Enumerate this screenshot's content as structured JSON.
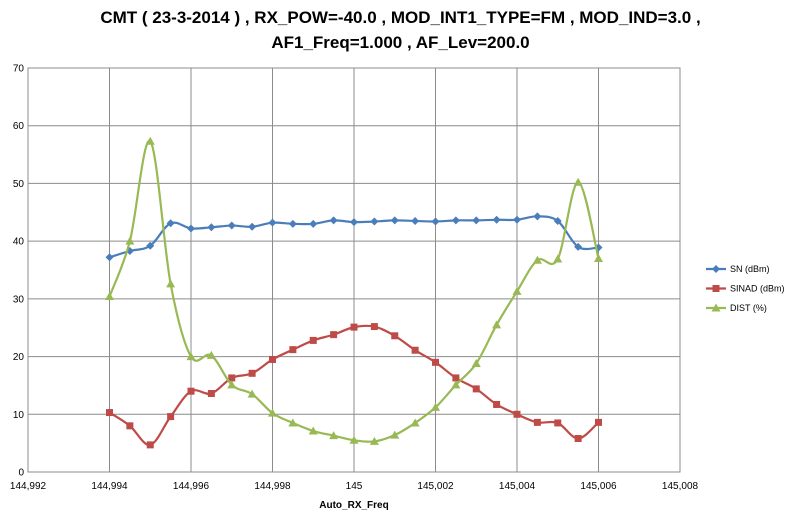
{
  "chart_data": {
    "type": "line",
    "title_line1": "CMT ( 23-3-2014 ) , RX_POW=-40.0 , MOD_INT1_TYPE=FM , MOD_IND=3.0 ,",
    "title_line2": "AF1_Freq=1.000 , AF_Lev=200.0",
    "xlabel": "Auto_RX_Freq",
    "ylabel": "",
    "xlim": [
      144.992,
      145.008
    ],
    "ylim": [
      0,
      70
    ],
    "x_ticks": [
      "144,992",
      "144,994",
      "144,996",
      "144,998",
      "145",
      "145,002",
      "145,004",
      "145,006",
      "145,008"
    ],
    "y_ticks": [
      "0",
      "10",
      "20",
      "30",
      "40",
      "50",
      "60",
      "70"
    ],
    "grid": "vertical and horizontal major gridlines",
    "legend_position": "right",
    "x": [
      144.994,
      144.9945,
      144.995,
      144.9955,
      144.996,
      144.9965,
      144.997,
      144.9975,
      144.998,
      144.9985,
      144.999,
      144.9995,
      145.0,
      145.0005,
      145.001,
      145.0015,
      145.002,
      145.0025,
      145.003,
      145.0035,
      145.004,
      145.0045,
      145.005,
      145.0055,
      145.006
    ],
    "series": [
      {
        "name": "SN (dBm)",
        "color": "#4a7ebb",
        "marker": "diamond",
        "values": [
          37.2,
          38.3,
          39.2,
          43.1,
          42.2,
          42.4,
          42.7,
          42.5,
          43.2,
          43.0,
          43.0,
          43.6,
          43.3,
          43.4,
          43.6,
          43.5,
          43.4,
          43.6,
          43.6,
          43.7,
          43.7,
          44.3,
          43.5,
          39.0,
          38.9
        ]
      },
      {
        "name": "SINAD (dBm)",
        "color": "#be4b48",
        "marker": "square",
        "values": [
          10.3,
          8.0,
          4.7,
          9.6,
          14.0,
          13.6,
          16.3,
          17.1,
          19.5,
          21.2,
          22.8,
          23.8,
          25.1,
          25.2,
          23.6,
          21.1,
          19.0,
          16.3,
          14.4,
          11.7,
          10.0,
          8.6,
          8.5,
          5.8,
          8.6
        ]
      },
      {
        "name": "DIST (%)",
        "color": "#98b954",
        "marker": "triangle",
        "values": [
          30.4,
          40.0,
          57.3,
          32.6,
          20.0,
          20.2,
          15.1,
          13.5,
          10.2,
          8.5,
          7.1,
          6.3,
          5.5,
          5.3,
          6.4,
          8.5,
          11.2,
          15.1,
          18.8,
          25.5,
          31.3,
          36.7,
          36.9,
          50.2,
          37.0
        ]
      }
    ]
  }
}
